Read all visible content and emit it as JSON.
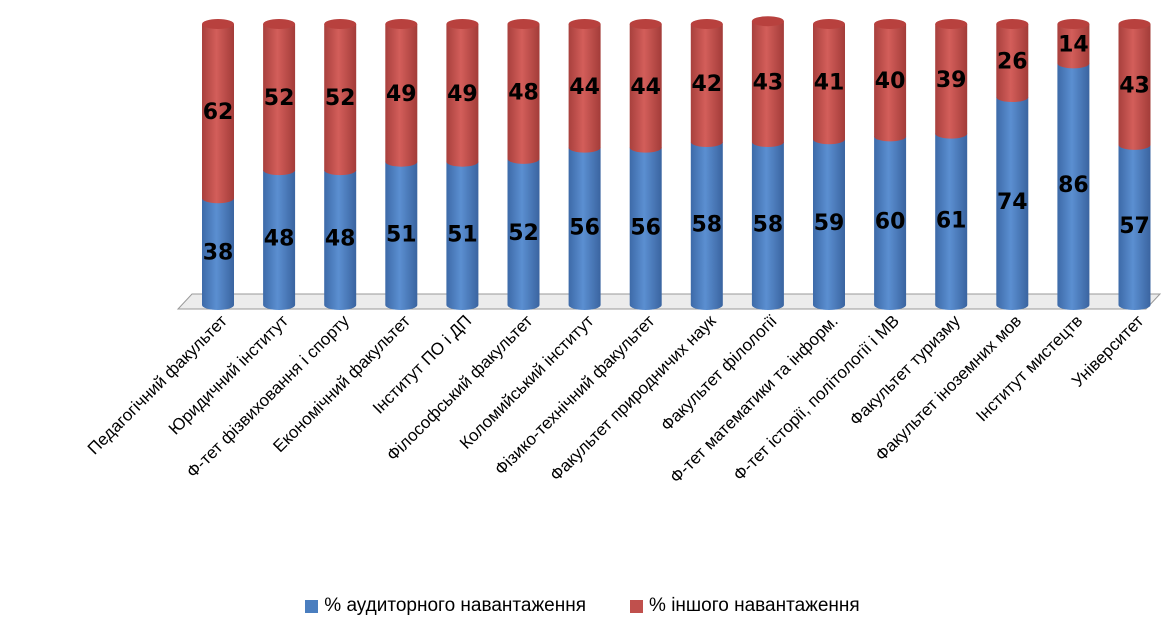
{
  "chart_data": {
    "type": "bar",
    "stacked": true,
    "percent": true,
    "categories": [
      "Педагогічний факультет",
      "Юридичний інститут",
      "Ф-тет фізвиховання і спорту",
      "Економічний факультет",
      "Інститут ПО і ДП",
      "Філософський факультет",
      "Коломийський інститут",
      "Фізико-технічний факультет",
      "Факультет природничих наук",
      "Факультет філології",
      "Ф-тет математики та інформ.",
      "Ф-тет історії, політології і МВ",
      "Факультет туризму",
      "Факультет іноземних мов",
      "Інститут мистецтв",
      "Університет"
    ],
    "series": [
      {
        "name": "% аудиторного навантаження",
        "color": "#4a7ebf",
        "values": [
          38,
          48,
          48,
          51,
          51,
          52,
          56,
          56,
          58,
          58,
          59,
          60,
          61,
          74,
          86,
          57
        ]
      },
      {
        "name": "% іншого навантаження",
        "color": "#c0504d",
        "values": [
          62,
          52,
          52,
          49,
          49,
          48,
          44,
          44,
          42,
          43,
          41,
          40,
          39,
          26,
          14,
          43
        ]
      }
    ],
    "ylim": [
      0,
      100
    ],
    "legend_position": "bottom",
    "grid": false
  }
}
